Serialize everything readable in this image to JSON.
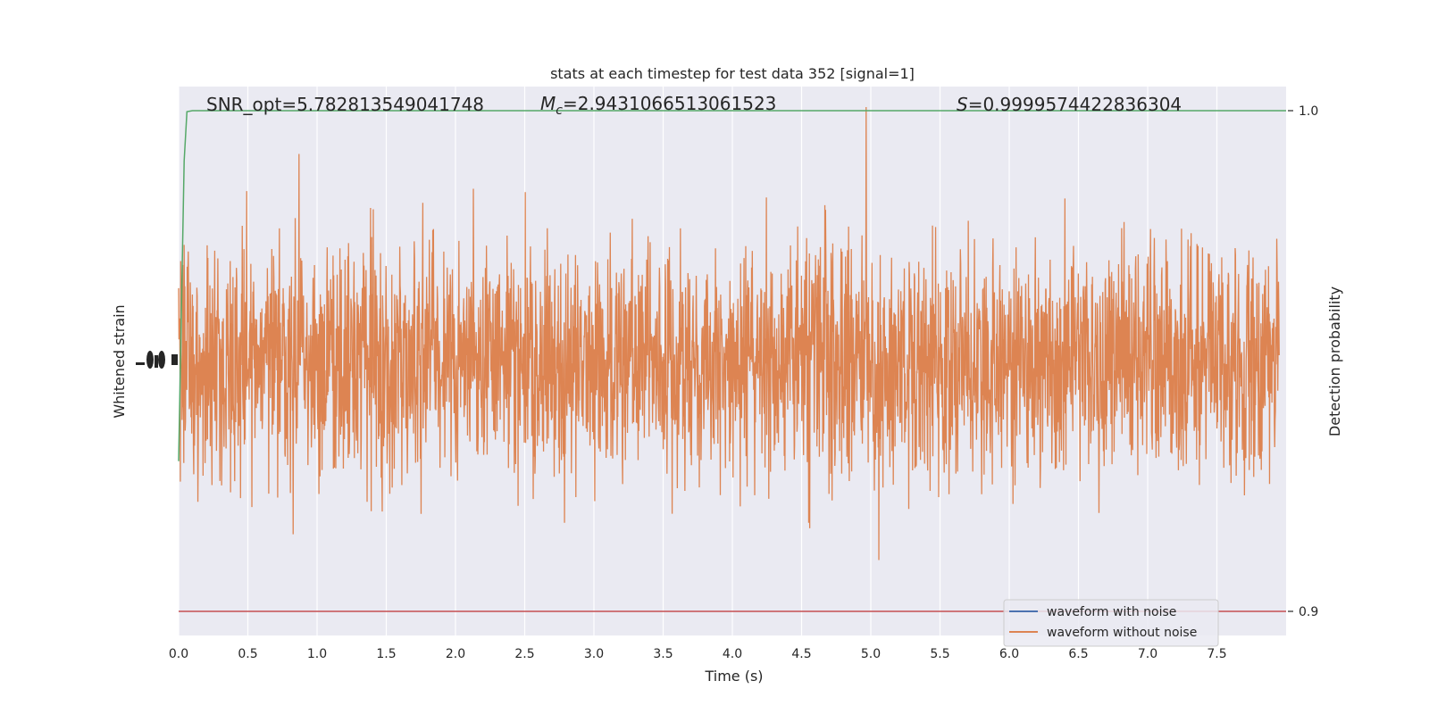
{
  "chart_data": {
    "type": "line",
    "title": "stats at each timestep for test data 352 [signal=1]",
    "xlabel": "Time (s)",
    "ylabel_left": "Whitened strain",
    "ylabel_right": "Detection probability",
    "xlim": [
      0.0,
      8.0
    ],
    "x_ticks": [
      "0.0",
      "0.5",
      "1.0",
      "1.5",
      "2.0",
      "2.5",
      "3.0",
      "3.5",
      "4.0",
      "4.5",
      "5.0",
      "5.5",
      "6.0",
      "6.5",
      "7.0",
      "7.5"
    ],
    "right_ylim": [
      0.895,
      1.0
    ],
    "right_ticks": [
      "0.9",
      "1.0"
    ],
    "grid": true,
    "legend_position": "lower-right",
    "annotations": {
      "snr": "SNR_opt=5.782813549041748",
      "mc_symbol": "M",
      "mc_sub": "c",
      "mc_value": "=2.9431066513061523",
      "s_symbol": "S",
      "s_value": "=0.9999574422836304"
    },
    "series": [
      {
        "name": "waveform with noise",
        "color": "#4c72b0",
        "axis": "left"
      },
      {
        "name": "waveform without noise",
        "color": "#dd8452",
        "axis": "left",
        "approx_range": [
          -1.0,
          1.0
        ]
      },
      {
        "axis": "right",
        "color": "#55a868",
        "x": [
          0.0,
          0.02,
          0.04,
          0.06,
          0.1,
          8.0
        ],
        "values": [
          0.93,
          0.96,
          0.99,
          0.9998,
          1.0,
          1.0
        ]
      },
      {
        "axis": "right",
        "color": "#c44e52",
        "x": [
          0.0,
          8.0
        ],
        "values": [
          0.9,
          0.9
        ]
      }
    ],
    "colors": {
      "plot_bg": "#eaeaf2",
      "grid": "#ffffff",
      "text": "#262626"
    }
  }
}
